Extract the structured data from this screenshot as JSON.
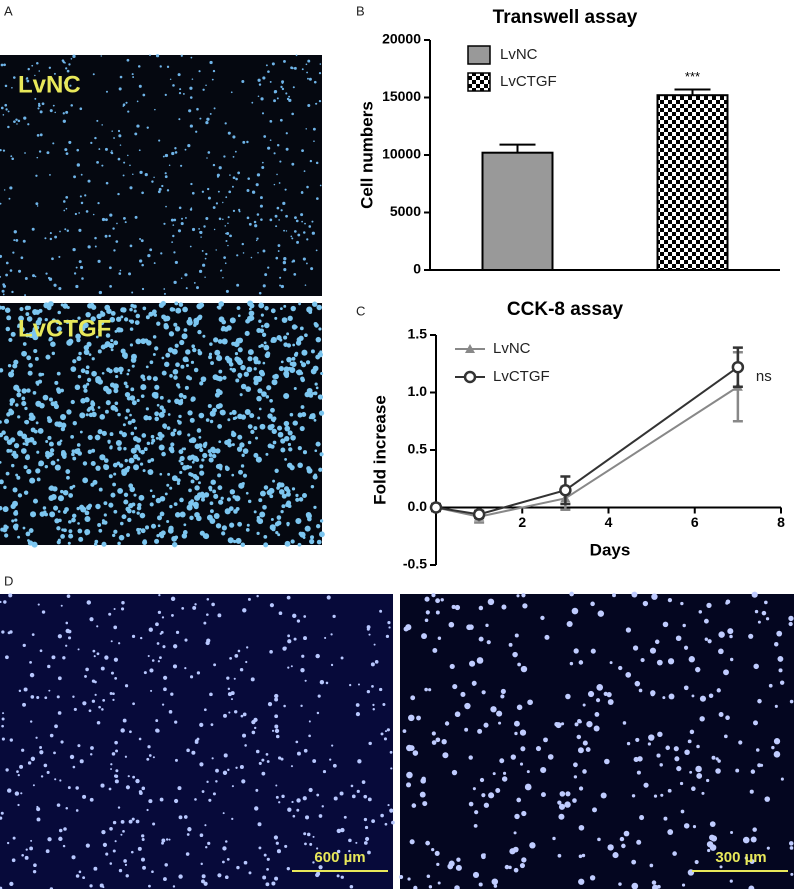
{
  "panels": {
    "A": {
      "letter": "A",
      "labels": [
        "LvNC",
        "LvCTGF"
      ]
    },
    "D": {
      "letter": "D",
      "scale_bars": [
        "600 µm",
        "300 µm"
      ]
    }
  },
  "chart_data": [
    {
      "type": "bar",
      "panel_label": "B",
      "title": "Transwell assay",
      "y_label": "Cell numbers",
      "categories": [
        null,
        null
      ],
      "series": [
        {
          "name": "LvNC",
          "color": "#999999",
          "values": [
            10200,
            null
          ],
          "errors": [
            700,
            null
          ]
        },
        {
          "name": "LvCTGF",
          "color": "#000000",
          "pattern": "checkerboard",
          "values": [
            null,
            15200
          ],
          "errors": [
            null,
            500
          ],
          "annotation": "***"
        }
      ],
      "ylim": [
        0,
        20000
      ],
      "yticks": [
        0,
        5000,
        10000,
        15000,
        20000
      ],
      "legend": "top-left"
    },
    {
      "type": "line",
      "panel_label": "C",
      "title": "CCK-8 assay",
      "x_label": "Days",
      "y_label": "Fold increase",
      "x": [
        0,
        1,
        3,
        7
      ],
      "series": [
        {
          "name": "LvNC",
          "color": "#888888",
          "marker": "triangle",
          "values": [
            0,
            -0.08,
            0.08,
            1.05
          ],
          "errors": [
            0.02,
            0.05,
            0.1,
            0.3
          ]
        },
        {
          "name": "LvCTGF",
          "color": "#333333",
          "marker": "circle",
          "values": [
            0,
            -0.06,
            0.15,
            1.22
          ],
          "errors": [
            0.03,
            0.03,
            0.12,
            0.17
          ]
        }
      ],
      "annotation": "ns",
      "xlim": [
        0,
        8
      ],
      "xticks": [
        2,
        4,
        6,
        8
      ],
      "ylim": [
        -0.5,
        1.5
      ],
      "yticks": [
        {
          "value": -0.5,
          "label": "-0.5"
        },
        {
          "value": 0,
          "label": "0.0"
        },
        {
          "value": 0.5,
          "label": "0.5"
        },
        {
          "value": 1,
          "label": "1.0"
        },
        {
          "value": 1.5,
          "label": "1.5"
        }
      ],
      "legend": "top-left"
    }
  ]
}
